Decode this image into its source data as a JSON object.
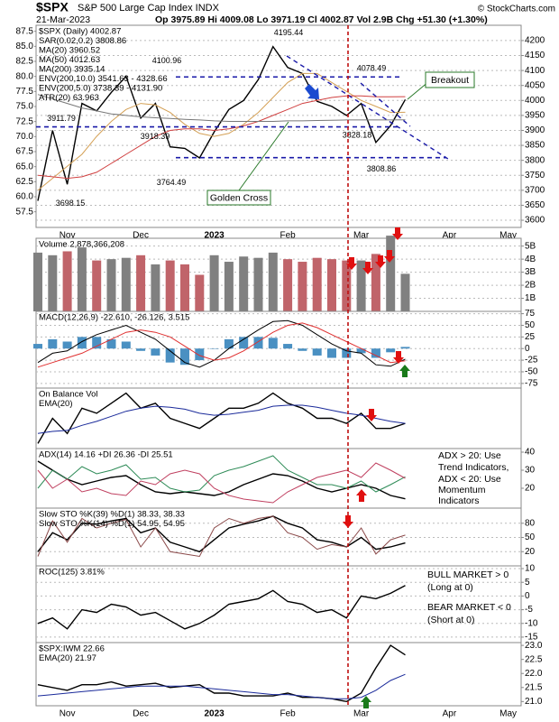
{
  "header": {
    "symbol": "$SPX",
    "name": "S&P 500 Large Cap Index INDX",
    "date": "21-Mar-2023",
    "quote": "Op 3975.89 Hi 4009.08 Lo 3971.19 Cl 4002.87 Vol 2.9B Chg +51.30 (+1.30%)",
    "source": "© StockCharts.com"
  },
  "chart_data": [
    {
      "type": "line",
      "categories": [
        null,
        null,
        "Nov",
        null,
        null,
        null,
        null,
        "Dec",
        null,
        null,
        null,
        null,
        "2023",
        null,
        null,
        null,
        null,
        "Feb",
        null,
        null,
        null,
        null,
        "Mar",
        null,
        null,
        null,
        null,
        null,
        "Apr",
        null,
        null,
        null,
        "May",
        null
      ],
      "legend": [
        {
          "text": "$SPX (Daily) 4002.87",
          "color": "#000000"
        },
        {
          "text": "SAR(0.02,0.2) 3808.86",
          "color": "#7f8fa6"
        },
        {
          "text": "MA(20) 3960.52",
          "color": "#c8882a"
        },
        {
          "text": "MA(50) 4012.63",
          "color": "#c0392b"
        },
        {
          "text": "MA(200) 3935.14",
          "color": "#000000"
        },
        {
          "text": "ENV(200,10.0) 3541.63 - 4328.66",
          "color": "#000000"
        },
        {
          "text": "ENV(200,5.0) 3738.39 - 4131.90",
          "color": "#000000"
        },
        {
          "text": "ATR(20) 63.963",
          "color": "#000000"
        }
      ],
      "series": [
        {
          "color": "#000000",
          "values": [
            3665,
            3900,
            3720,
            3990,
            3965,
            4027,
            4080,
            3941,
            3990,
            3845,
            3840,
            3808,
            3895,
            3970,
            4000,
            4070,
            4180,
            4110,
            4090,
            3997,
            3980,
            3950,
            3990,
            3860,
            3916,
            4002.87,
            null,
            null,
            null,
            null,
            null,
            null,
            null,
            null
          ]
        },
        {
          "color": "#d4a055",
          "values": [
            3700,
            3740,
            3780,
            3820,
            3880,
            3930,
            3970,
            3990,
            3985,
            3960,
            3920,
            3890,
            3880,
            3890,
            3920,
            3960,
            4010,
            4060,
            4090,
            4090,
            4060,
            4030,
            4000,
            3980,
            3960,
            3960.52,
            null,
            null,
            null,
            null,
            null,
            null,
            null,
            null
          ]
        },
        {
          "color": "#d04040",
          "values": [
            3750,
            3745,
            3740,
            3745,
            3760,
            3790,
            3820,
            3850,
            3880,
            3900,
            3905,
            3905,
            3900,
            3905,
            3915,
            3930,
            3950,
            3970,
            3990,
            4000,
            4010,
            4015,
            4015,
            4012,
            4012,
            4012.63,
            null,
            null,
            null,
            null,
            null,
            null,
            null,
            null
          ]
        },
        {
          "color": "#777777",
          "values": [
            4020,
            4005,
            3990,
            3975,
            3965,
            3955,
            3950,
            3945,
            3942,
            3940,
            3937,
            3935,
            3932,
            3930,
            3930,
            3930,
            3930,
            3932,
            3932,
            3933,
            3934,
            3935,
            3935,
            3935,
            3935,
            3935.14,
            null,
            null,
            null,
            null,
            null,
            null,
            null,
            null
          ]
        }
      ],
      "ylim": [
        3576,
        4251
      ],
      "yticks": [
        3600,
        3650,
        3700,
        3750,
        3800,
        3850,
        3900,
        3950,
        4000,
        4050,
        4100,
        4150,
        4200
      ],
      "y2lim": [
        54.9,
        88.5
      ],
      "y2ticks": [
        57.5,
        {
          "value": 60,
          "label": "60.0"
        },
        62.5,
        {
          "value": 65,
          "label": "65.0"
        },
        67.5,
        {
          "value": 70,
          "label": "70.0"
        },
        72.5,
        {
          "value": 75,
          "label": "75.0"
        },
        77.5,
        {
          "value": 80,
          "label": "80.0"
        },
        82.5,
        {
          "value": 85,
          "label": "85.0"
        },
        87.5
      ],
      "annotations": [
        4195.44,
        4100.96,
        4078.49,
        3911.79,
        3918.39,
        3828.18,
        3764.49,
        3698.15,
        3808.86
      ],
      "notes": [
        "Golden Cross",
        "Breakout"
      ],
      "grid": true
    },
    {
      "type": "bar",
      "legend": [
        {
          "text": "Volume 2,878,366,208",
          "color": "#000000"
        }
      ],
      "up_color": "#808080",
      "down_color": "#c0646a",
      "series": [
        {
          "values": [
            4500000000,
            4300000000,
            4600000000,
            4900000000,
            3900000000,
            4000000000,
            4100000000,
            4300000000,
            3600000000,
            3900000000,
            3600000000,
            2800000000,
            4300000000,
            3800000000,
            4200000000,
            4100000000,
            4500000000,
            4000000000,
            3800000000,
            4100000000,
            4000000000,
            3900000000,
            3900000000,
            4400000000,
            5800000000,
            2878366208,
            null,
            null,
            null,
            null,
            null,
            null,
            null,
            null
          ]
        }
      ],
      "ylim": [
        0,
        5600000000
      ],
      "yticks": [
        {
          "value": 1000000000,
          "label": "1B"
        },
        {
          "value": 2000000000,
          "label": "2B"
        },
        {
          "value": 3000000000,
          "label": "3B"
        },
        {
          "value": 4000000000,
          "label": "4B"
        },
        {
          "value": 5000000000,
          "label": "5B"
        }
      ],
      "grid": true
    },
    {
      "type": "combo",
      "legend": [
        {
          "text": "MACD(12,26,9) -22.610, -26.126, 3.515",
          "color": "#000000"
        }
      ],
      "series": [
        {
          "kind": "bar",
          "color": "#4a90c2",
          "values": [
            10,
            20,
            15,
            25,
            25,
            20,
            15,
            -5,
            -15,
            -30,
            -35,
            -25,
            0,
            20,
            25,
            25,
            23,
            10,
            -5,
            -15,
            -20,
            -20,
            -10,
            -20,
            -8,
            3.515,
            null,
            null,
            null,
            null,
            null,
            null,
            null,
            null
          ]
        },
        {
          "color": "#000000",
          "values": [
            -30,
            -10,
            -5,
            15,
            30,
            40,
            50,
            35,
            20,
            -5,
            -30,
            -40,
            -25,
            0,
            20,
            40,
            58,
            60,
            50,
            30,
            10,
            -5,
            -10,
            -35,
            -38,
            -22.61,
            null,
            null,
            null,
            null,
            null,
            null,
            null,
            null
          ]
        },
        {
          "color": "#e03030",
          "values": [
            -40,
            -30,
            -20,
            -10,
            5,
            20,
            35,
            40,
            35,
            25,
            5,
            -15,
            -25,
            -20,
            -5,
            15,
            35,
            50,
            55,
            45,
            30,
            15,
            0,
            -15,
            -30,
            -26.126,
            null,
            null,
            null,
            null,
            null,
            null,
            null,
            null
          ]
        }
      ],
      "ylim": [
        -85,
        80
      ],
      "yticks": [
        -75,
        -50,
        -25,
        0,
        25,
        50,
        75
      ],
      "grid": true
    },
    {
      "type": "line",
      "legend": [
        {
          "text": "On Balance Vol",
          "color": "#000000"
        },
        {
          "text": "EMA(20)",
          "color": "#1a2a9a"
        }
      ],
      "series": [
        {
          "color": "#000000",
          "values": [
            20,
            45,
            30,
            55,
            50,
            60,
            70,
            55,
            60,
            45,
            40,
            35,
            45,
            55,
            55,
            60,
            70,
            60,
            55,
            45,
            45,
            40,
            50,
            35,
            35,
            40,
            null,
            null,
            null,
            null,
            null,
            null,
            null,
            null
          ]
        },
        {
          "color": "#1a2a9a",
          "values": [
            30,
            32,
            33,
            38,
            42,
            47,
            52,
            55,
            57,
            56,
            54,
            50,
            48,
            49,
            51,
            53,
            57,
            58,
            58,
            56,
            53,
            50,
            48,
            45,
            42,
            40,
            null,
            null,
            null,
            null,
            null,
            null,
            null,
            null
          ]
        }
      ]
    },
    {
      "type": "line",
      "legend": [
        {
          "text": "ADX(14) 14.16 +DI 26.36 -DI 25.51",
          "color": "#000000"
        }
      ],
      "series": [
        {
          "color": "#000000",
          "values": [
            35,
            30,
            25,
            22,
            24,
            26,
            27,
            22,
            18,
            17,
            18,
            17,
            16,
            18,
            22,
            25,
            28,
            27,
            24,
            20,
            18,
            20,
            22,
            20,
            16,
            14.16,
            null,
            null,
            null,
            null,
            null,
            null,
            null,
            null
          ]
        },
        {
          "color": "#2e8b57",
          "values": [
            20,
            30,
            25,
            32,
            28,
            30,
            33,
            25,
            26,
            20,
            18,
            19,
            27,
            30,
            32,
            35,
            38,
            30,
            26,
            22,
            22,
            20,
            24,
            18,
            22,
            26.36,
            null,
            null,
            null,
            null,
            null,
            null,
            null,
            null
          ]
        },
        {
          "color": "#c04060",
          "values": [
            30,
            20,
            25,
            18,
            20,
            17,
            16,
            24,
            22,
            28,
            30,
            28,
            20,
            16,
            14,
            13,
            12,
            18,
            22,
            26,
            28,
            30,
            26,
            34,
            30,
            25.51,
            null,
            null,
            null,
            null,
            null,
            null,
            null,
            null
          ]
        }
      ],
      "ylim": [
        9,
        42
      ],
      "yticks": [
        20,
        30,
        40
      ],
      "side_notes": [
        {
          "text": "ADX > 20: Use",
          "color": "#000000"
        },
        {
          "text": "Trend Indicators,",
          "color": "#000000"
        },
        {
          "text": "ADX < 20: Use",
          "color": "#000000"
        },
        {
          "text": "Momentum",
          "color": "#000000"
        },
        {
          "text": "Indicators",
          "color": "#000000"
        }
      ]
    },
    {
      "type": "line",
      "legend": [
        {
          "text": "Slow STO %K(39) %D(1) 38.33, 38.33",
          "color": "#000000"
        },
        {
          "text": "Slow STO %K(14) %D(1) 54.95, 54.95",
          "color": "#8b3a3a"
        }
      ],
      "series": [
        {
          "color": "#000000",
          "values": [
            20,
            60,
            45,
            80,
            78,
            85,
            90,
            60,
            70,
            40,
            30,
            20,
            45,
            70,
            78,
            85,
            95,
            80,
            70,
            45,
            40,
            30,
            50,
            25,
            30,
            38.33,
            null,
            null,
            null,
            null,
            null,
            null,
            null,
            null
          ]
        },
        {
          "color": "#8b4a4a",
          "values": [
            10,
            85,
            40,
            90,
            70,
            80,
            88,
            30,
            70,
            20,
            15,
            10,
            70,
            90,
            80,
            90,
            95,
            60,
            50,
            25,
            35,
            30,
            70,
            15,
            45,
            54.95,
            null,
            null,
            null,
            null,
            null,
            null,
            null,
            null
          ]
        }
      ],
      "ylim": [
        -10,
        112
      ],
      "yticks": [
        20,
        50,
        80
      ],
      "grid": true
    },
    {
      "type": "line",
      "legend": [
        {
          "text": "ROC(125) 3.81%",
          "color": "#000000"
        }
      ],
      "series": [
        {
          "color": "#000000",
          "values": [
            -10,
            -8,
            -12,
            -5,
            -6,
            -3,
            -4,
            -7,
            -6,
            -9,
            -12,
            -10,
            -7,
            -3,
            -2,
            -1,
            2,
            -2,
            -3,
            -6,
            -5,
            -8,
            0,
            -1,
            1,
            3.81,
            null,
            null,
            null,
            null,
            null,
            null,
            null,
            null
          ]
        }
      ],
      "ylim": [
        -17,
        11
      ],
      "yticks": [
        -15,
        -10,
        -5,
        0,
        5,
        10
      ],
      "grid": true,
      "side_notes": [
        {
          "text": "BULL MARKET > 0",
          "color": "#1a7a1a"
        },
        {
          "text": "(Long at 0)",
          "color": "#1a7a1a"
        },
        {
          "text": "BEAR MARKET < 0",
          "color": "#d02020"
        },
        {
          "text": "(Short at 0)",
          "color": "#d02020"
        }
      ]
    },
    {
      "type": "line",
      "legend": [
        {
          "text": "$SPX:IWM 22.66",
          "color": "#000000"
        },
        {
          "text": "EMA(20) 21.97",
          "color": "#1a2a9a"
        }
      ],
      "series": [
        {
          "color": "#000000",
          "values": [
            21.6,
            21.5,
            21.4,
            21.6,
            21.6,
            21.7,
            21.55,
            21.6,
            21.65,
            21.5,
            21.55,
            21.6,
            21.3,
            21.3,
            21.2,
            21.2,
            21.2,
            21.3,
            21.15,
            21.15,
            21.1,
            21.0,
            21.3,
            22.2,
            23.0,
            22.66,
            null,
            null,
            null,
            null,
            null,
            null,
            null,
            null
          ]
        },
        {
          "color": "#1a2a9a",
          "values": [
            21.2,
            21.25,
            21.3,
            21.35,
            21.4,
            21.45,
            21.5,
            21.55,
            21.55,
            21.55,
            21.55,
            21.5,
            21.45,
            21.4,
            21.35,
            21.3,
            21.25,
            21.25,
            21.2,
            21.15,
            21.1,
            21.1,
            21.15,
            21.4,
            21.75,
            21.97,
            null,
            null,
            null,
            null,
            null,
            null,
            null,
            null
          ]
        }
      ],
      "ylim": [
        20.85,
        23.1
      ],
      "yticks": [
        {
          "value": 21,
          "label": "21.0"
        },
        21.5,
        {
          "value": 22,
          "label": "22.0"
        },
        22.5,
        {
          "value": 23,
          "label": "23.0"
        }
      ]
    }
  ]
}
